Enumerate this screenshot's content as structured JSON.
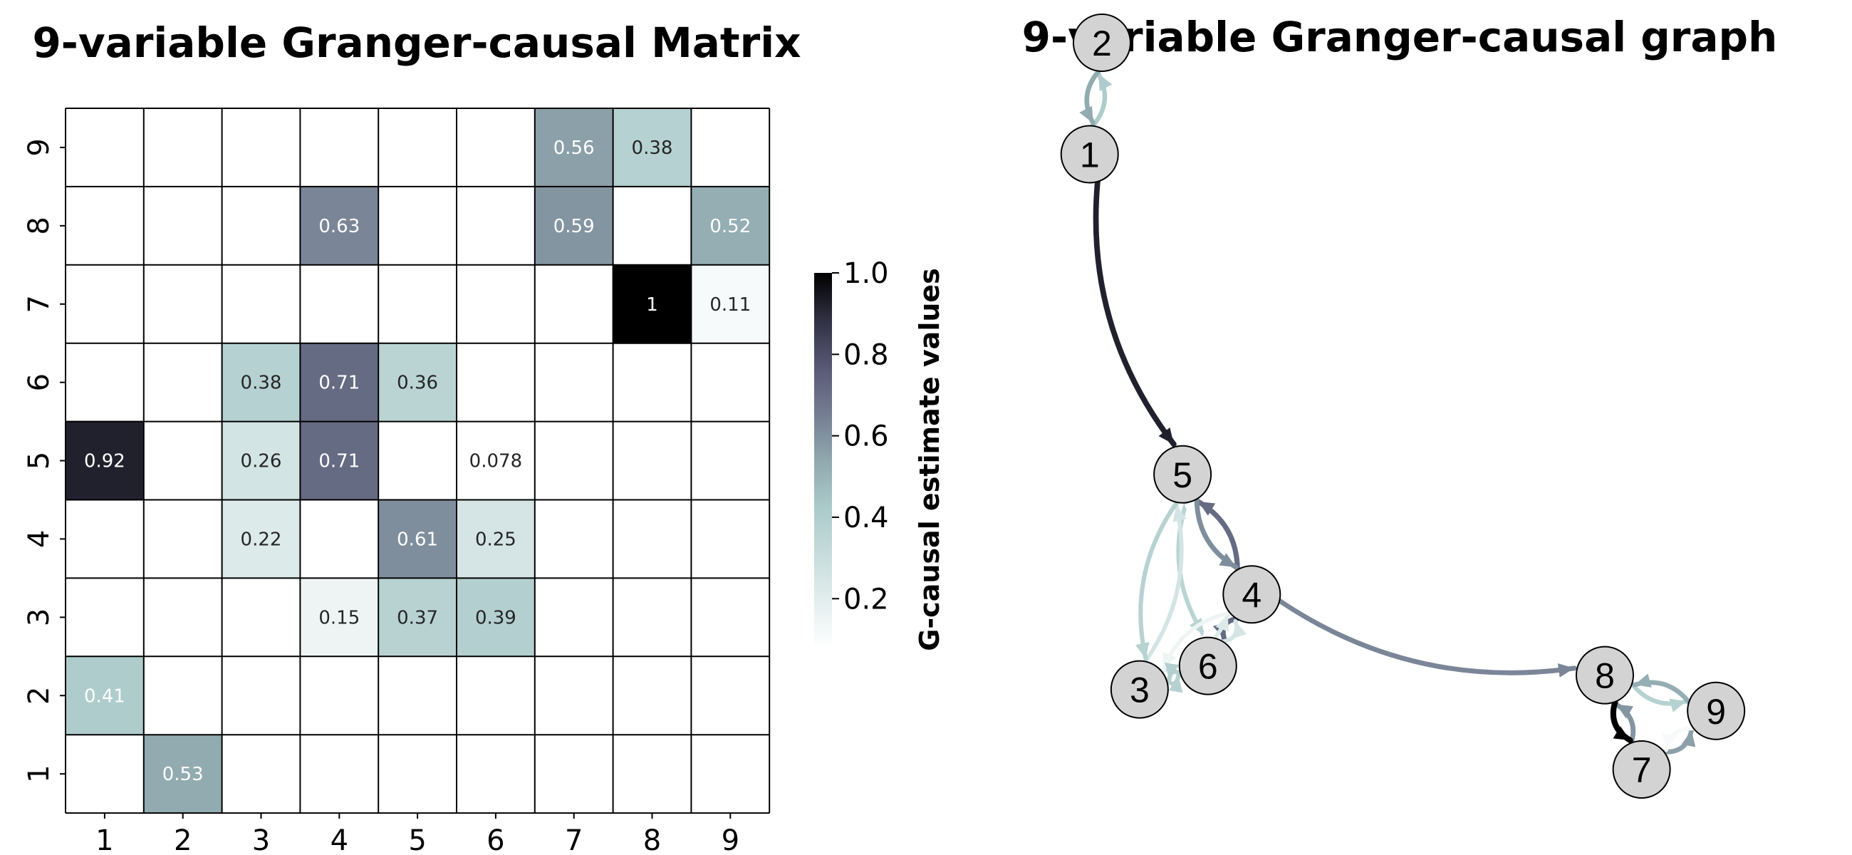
{
  "chart_data": [
    {
      "type": "heatmap",
      "title": "9-variable Granger-causal Matrix",
      "x_categories": [
        "1",
        "2",
        "3",
        "4",
        "5",
        "6",
        "7",
        "8",
        "9"
      ],
      "y_categories": [
        "1",
        "2",
        "3",
        "4",
        "5",
        "6",
        "7",
        "8",
        "9"
      ],
      "cells": [
        {
          "x": "7",
          "y": "9",
          "value": 0.56,
          "label": "0.56"
        },
        {
          "x": "8",
          "y": "9",
          "value": 0.38,
          "label": "0.38"
        },
        {
          "x": "4",
          "y": "8",
          "value": 0.63,
          "label": "0.63"
        },
        {
          "x": "7",
          "y": "8",
          "value": 0.59,
          "label": "0.59"
        },
        {
          "x": "9",
          "y": "8",
          "value": 0.52,
          "label": "0.52"
        },
        {
          "x": "8",
          "y": "7",
          "value": 1.0,
          "label": "1"
        },
        {
          "x": "9",
          "y": "7",
          "value": 0.11,
          "label": "0.11"
        },
        {
          "x": "3",
          "y": "6",
          "value": 0.38,
          "label": "0.38"
        },
        {
          "x": "4",
          "y": "6",
          "value": 0.71,
          "label": "0.71"
        },
        {
          "x": "5",
          "y": "6",
          "value": 0.36,
          "label": "0.36"
        },
        {
          "x": "1",
          "y": "5",
          "value": 0.92,
          "label": "0.92"
        },
        {
          "x": "3",
          "y": "5",
          "value": 0.26,
          "label": "0.26"
        },
        {
          "x": "4",
          "y": "5",
          "value": 0.71,
          "label": "0.71"
        },
        {
          "x": "6",
          "y": "5",
          "value": 0.078,
          "label": "0.078"
        },
        {
          "x": "3",
          "y": "4",
          "value": 0.22,
          "label": "0.22"
        },
        {
          "x": "5",
          "y": "4",
          "value": 0.61,
          "label": "0.61"
        },
        {
          "x": "6",
          "y": "4",
          "value": 0.25,
          "label": "0.25"
        },
        {
          "x": "4",
          "y": "3",
          "value": 0.15,
          "label": "0.15"
        },
        {
          "x": "5",
          "y": "3",
          "value": 0.37,
          "label": "0.37"
        },
        {
          "x": "6",
          "y": "3",
          "value": 0.39,
          "label": "0.39"
        },
        {
          "x": "1",
          "y": "2",
          "value": 0.41,
          "label": "0.41"
        },
        {
          "x": "2",
          "y": "1",
          "value": 0.53,
          "label": "0.53"
        }
      ],
      "colorbar": {
        "label": "G-causal estimate values",
        "range": [
          0.078,
          1.0
        ],
        "ticks": [
          "0.2",
          "0.4",
          "0.6",
          "0.8",
          "1.0"
        ],
        "tick_values": [
          0.2,
          0.4,
          0.6,
          0.8,
          1.0
        ],
        "colormap": "bone_r"
      },
      "grid": true
    },
    {
      "type": "graph",
      "title": "9-variable Granger-causal graph",
      "nodes": [
        {
          "id": "1",
          "x": 0.138,
          "y": 0.749
        },
        {
          "id": "2",
          "x": 0.152,
          "y": 0.905
        },
        {
          "id": "3",
          "x": 0.195,
          "y": 0.0
        },
        {
          "id": "4",
          "x": 0.323,
          "y": 0.133
        },
        {
          "id": "5",
          "x": 0.244,
          "y": 0.301
        },
        {
          "id": "6",
          "x": 0.273,
          "y": 0.033
        },
        {
          "id": "7",
          "x": 0.768,
          "y": -0.112
        },
        {
          "id": "8",
          "x": 0.726,
          "y": 0.02
        },
        {
          "id": "9",
          "x": 0.853,
          "y": -0.03
        }
      ],
      "edges": [
        {
          "source": "7",
          "target": "9",
          "weight": 0.56
        },
        {
          "source": "8",
          "target": "9",
          "weight": 0.38
        },
        {
          "source": "4",
          "target": "8",
          "weight": 0.63
        },
        {
          "source": "7",
          "target": "8",
          "weight": 0.59
        },
        {
          "source": "9",
          "target": "8",
          "weight": 0.52
        },
        {
          "source": "8",
          "target": "7",
          "weight": 1.0
        },
        {
          "source": "9",
          "target": "7",
          "weight": 0.11
        },
        {
          "source": "3",
          "target": "6",
          "weight": 0.38
        },
        {
          "source": "4",
          "target": "6",
          "weight": 0.71
        },
        {
          "source": "5",
          "target": "6",
          "weight": 0.36
        },
        {
          "source": "1",
          "target": "5",
          "weight": 0.92
        },
        {
          "source": "3",
          "target": "5",
          "weight": 0.26
        },
        {
          "source": "4",
          "target": "5",
          "weight": 0.71
        },
        {
          "source": "6",
          "target": "5",
          "weight": 0.078
        },
        {
          "source": "3",
          "target": "4",
          "weight": 0.22
        },
        {
          "source": "5",
          "target": "4",
          "weight": 0.61
        },
        {
          "source": "6",
          "target": "4",
          "weight": 0.25
        },
        {
          "source": "4",
          "target": "3",
          "weight": 0.15
        },
        {
          "source": "5",
          "target": "3",
          "weight": 0.37
        },
        {
          "source": "6",
          "target": "3",
          "weight": 0.39
        },
        {
          "source": "1",
          "target": "2",
          "weight": 0.41
        },
        {
          "source": "2",
          "target": "1",
          "weight": 0.53
        }
      ]
    }
  ]
}
